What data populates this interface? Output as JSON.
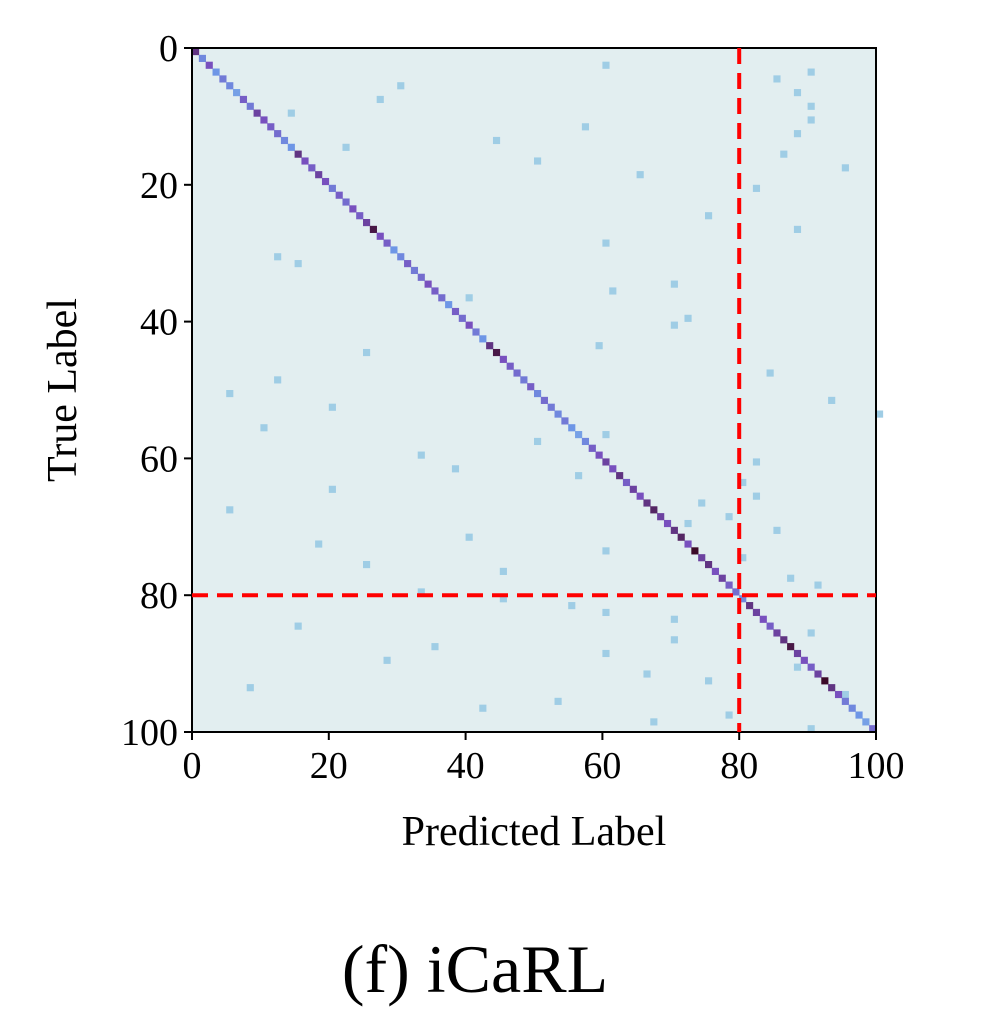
{
  "caption": "(f)  iCaRL",
  "chart_data": {
    "type": "heatmap",
    "title": "",
    "xlabel": "Predicted Label",
    "ylabel": "True Label",
    "xlim": [
      0,
      100
    ],
    "ylim": [
      0,
      100
    ],
    "x_ticks": [
      "0",
      "20",
      "40",
      "60",
      "80",
      "100"
    ],
    "y_ticks": [
      "0",
      "20",
      "40",
      "60",
      "80",
      "100"
    ],
    "grid": false,
    "reference_lines": [
      {
        "orientation": "vertical",
        "value": 80,
        "style": "dashed",
        "color": "#ff0000"
      },
      {
        "orientation": "horizontal",
        "value": 80,
        "style": "dashed",
        "color": "#ff0000"
      }
    ],
    "diagonal_intensity": [
      0.85,
      0.55,
      0.75,
      0.5,
      0.6,
      0.55,
      0.45,
      0.7,
      0.6,
      0.8,
      0.75,
      0.7,
      0.65,
      0.55,
      0.5,
      0.85,
      0.75,
      0.7,
      0.8,
      0.75,
      0.6,
      0.7,
      0.65,
      0.75,
      0.7,
      0.8,
      0.95,
      0.75,
      0.7,
      0.5,
      0.55,
      0.7,
      0.6,
      0.65,
      0.75,
      0.7,
      0.65,
      0.5,
      0.7,
      0.65,
      0.75,
      0.6,
      0.5,
      0.85,
      0.95,
      0.75,
      0.7,
      0.65,
      0.6,
      0.7,
      0.55,
      0.65,
      0.6,
      0.55,
      0.6,
      0.5,
      0.45,
      0.55,
      0.7,
      0.75,
      0.8,
      0.75,
      0.85,
      0.7,
      0.8,
      0.75,
      0.85,
      0.9,
      0.8,
      0.75,
      0.85,
      0.9,
      0.75,
      1.0,
      0.8,
      0.85,
      0.75,
      0.8,
      0.7,
      0.65,
      0.55,
      0.85,
      0.8,
      0.75,
      0.7,
      0.8,
      0.85,
      0.95,
      0.8,
      0.75,
      0.7,
      0.8,
      1.0,
      0.85,
      0.75,
      0.6,
      0.55,
      0.5,
      0.45,
      0.65
    ],
    "off_diagonal_cells": [
      [
        3,
        90
      ],
      [
        4,
        85
      ],
      [
        6,
        88
      ],
      [
        8,
        90
      ],
      [
        10,
        90
      ],
      [
        12,
        88
      ],
      [
        15,
        86
      ],
      [
        5,
        30
      ],
      [
        7,
        27
      ],
      [
        30,
        12
      ],
      [
        31,
        15
      ],
      [
        34,
        70
      ],
      [
        35,
        61
      ],
      [
        20,
        82
      ],
      [
        39,
        72
      ],
      [
        40,
        70
      ],
      [
        43,
        59
      ],
      [
        47,
        84
      ],
      [
        50,
        5
      ],
      [
        51,
        93
      ],
      [
        53,
        100
      ],
      [
        56,
        60
      ],
      [
        57,
        50
      ],
      [
        58,
        58
      ],
      [
        60,
        82
      ],
      [
        62,
        56
      ],
      [
        63,
        80
      ],
      [
        65,
        82
      ],
      [
        66,
        74
      ],
      [
        68,
        78
      ],
      [
        70,
        85
      ],
      [
        73,
        60
      ],
      [
        74,
        80
      ],
      [
        76,
        45
      ],
      [
        77,
        87
      ],
      [
        78,
        91
      ],
      [
        79,
        33
      ],
      [
        84,
        15
      ],
      [
        86,
        70
      ],
      [
        88,
        60
      ],
      [
        90,
        88
      ],
      [
        92,
        75
      ],
      [
        95,
        53
      ],
      [
        97,
        78
      ],
      [
        99,
        90
      ],
      [
        14,
        22
      ],
      [
        18,
        65
      ],
      [
        24,
        75
      ],
      [
        26,
        88
      ],
      [
        28,
        60
      ],
      [
        36,
        40
      ],
      [
        44,
        25
      ],
      [
        48,
        12
      ],
      [
        52,
        20
      ],
      [
        55,
        10
      ],
      [
        59,
        33
      ],
      [
        61,
        38
      ],
      [
        64,
        20
      ],
      [
        67,
        5
      ],
      [
        69,
        72
      ],
      [
        71,
        40
      ],
      [
        72,
        18
      ],
      [
        75,
        25
      ],
      [
        80,
        45
      ],
      [
        81,
        55
      ],
      [
        82,
        60
      ],
      [
        83,
        70
      ],
      [
        85,
        90
      ],
      [
        87,
        35
      ],
      [
        89,
        28
      ],
      [
        91,
        66
      ],
      [
        93,
        8
      ],
      [
        94,
        95
      ],
      [
        96,
        42
      ],
      [
        98,
        67
      ],
      [
        2,
        60
      ],
      [
        9,
        14
      ],
      [
        11,
        57
      ],
      [
        13,
        44
      ],
      [
        16,
        50
      ],
      [
        17,
        95
      ]
    ]
  }
}
